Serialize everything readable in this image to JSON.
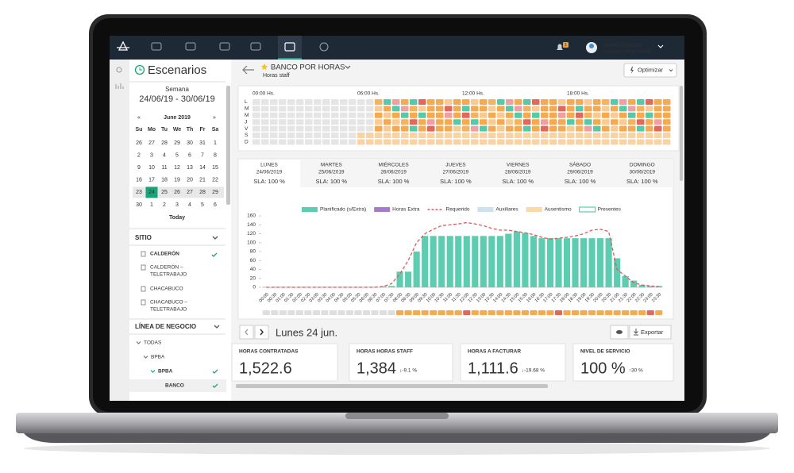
{
  "header": {
    "user_name": "Javier Colombo",
    "user_role": "Supervisor, BACK OFFICE",
    "notifications": "1"
  },
  "sidebar": {
    "title": "Escenarios",
    "week_label": "Semana",
    "week_range": "24/06/19 - 30/06/19",
    "calendar": {
      "prev": "«",
      "month": "June 2019",
      "next": "»",
      "weekdays": [
        "Su",
        "Mo",
        "Tu",
        "We",
        "Th",
        "Fr",
        "Sa"
      ],
      "weeks": [
        [
          26,
          27,
          28,
          29,
          30,
          31,
          1
        ],
        [
          2,
          3,
          4,
          5,
          6,
          7,
          8
        ],
        [
          9,
          10,
          11,
          12,
          13,
          14,
          15
        ],
        [
          16,
          17,
          18,
          19,
          20,
          21,
          22
        ],
        [
          23,
          24,
          25,
          26,
          27,
          28,
          29
        ],
        [
          30,
          1,
          2,
          3,
          4,
          5,
          6
        ]
      ],
      "today": "Today"
    },
    "site_title": "SITIO",
    "sites": [
      [
        "CALDERÓN"
      ],
      [
        "CALDERÓN –",
        "TELETRABAJO"
      ],
      [
        "CHACABUCO"
      ],
      [
        "CHACABUCO –",
        "TELETRABAJO"
      ]
    ],
    "business_title": "LÍNEA DE NEGOCIO",
    "business": [
      "TODAS",
      "BPBA",
      "BPBA",
      "BANCO"
    ]
  },
  "page": {
    "title": "BANCO POR HORAS",
    "subtitle": "Horas staff",
    "optimize": "Optimizar"
  },
  "heatmap": {
    "times": [
      "00:00 Hs.",
      "06:00 Hs.",
      "12:00 Hs.",
      "18:00 Hs."
    ],
    "rows": [
      "L",
      "M",
      "M",
      "J",
      "V",
      "S",
      "D"
    ]
  },
  "days": [
    {
      "name": "LUNES",
      "date": "24/06/2019",
      "sla": "SLA: 100 %"
    },
    {
      "name": "MARTES",
      "date": "25/06/2019",
      "sla": "SLA: 100 %"
    },
    {
      "name": "MIÉRCOLES",
      "date": "26/06/2019",
      "sla": "SLA: 100 %"
    },
    {
      "name": "JUEVES",
      "date": "27/06/2019",
      "sla": "SLA: 100 %"
    },
    {
      "name": "VIERNES",
      "date": "28/06/2019",
      "sla": "SLA: 100 %"
    },
    {
      "name": "SÁBADO",
      "date": "29/06/2019",
      "sla": "SLA: 100 %"
    },
    {
      "name": "DOMINGO",
      "date": "30/06/2019",
      "sla": "SLA: 100 %"
    }
  ],
  "chart": {
    "type": "bar",
    "categories": [
      "00:00",
      "00:30",
      "01:00",
      "01:30",
      "02:00",
      "02:30",
      "03:00",
      "03:30",
      "04:00",
      "04:30",
      "05:00",
      "05:30",
      "06:00",
      "06:30",
      "07:00",
      "07:30",
      "08:00",
      "08:30",
      "09:00",
      "09:30",
      "10:00",
      "10:30",
      "11:00",
      "11:30",
      "12:00",
      "12:30",
      "13:00",
      "13:30",
      "14:00",
      "14:30",
      "15:00",
      "15:30",
      "16:00",
      "16:30",
      "17:00",
      "17:30",
      "18:00",
      "18:30",
      "19:00",
      "19:30",
      "20:00",
      "20:30",
      "21:00",
      "21:30",
      "22:00",
      "22:30",
      "23:00",
      "23:30"
    ],
    "series": [
      {
        "name": "Planificado (s/Extra)",
        "color": "#5ccdb0",
        "values": [
          1,
          1,
          1,
          1,
          1,
          1,
          1,
          1,
          1,
          1,
          1,
          1,
          1,
          1,
          2,
          3,
          35,
          35,
          80,
          115,
          115,
          115,
          115,
          115,
          115,
          115,
          115,
          115,
          115,
          120,
          125,
          122,
          115,
          110,
          110,
          110,
          110,
          110,
          110,
          110,
          110,
          110,
          65,
          25,
          15,
          5,
          3,
          3
        ]
      },
      {
        "name": "Horas Extra",
        "color": "#a67cc6"
      },
      {
        "name": "Requerido",
        "color": "#e05a5a",
        "values": [
          0,
          0,
          0,
          0,
          0,
          0,
          0,
          0,
          0,
          0,
          0,
          0,
          0,
          0,
          2,
          8,
          30,
          60,
          100,
          120,
          130,
          138,
          140,
          142,
          145,
          142,
          138,
          132,
          128,
          128,
          125,
          122,
          118,
          112,
          108,
          110,
          112,
          115,
          120,
          128,
          130,
          125,
          40,
          25,
          10,
          5,
          3,
          2
        ]
      },
      {
        "name": "Auxiliares",
        "color": "#cfe0ef"
      },
      {
        "name": "Ausentismo",
        "color": "#f9d9a8"
      },
      {
        "name": "Presentes",
        "color": "#5ccdb0"
      }
    ],
    "ylim": [
      0,
      160
    ],
    "yticks": [
      0,
      20,
      40,
      60,
      80,
      100,
      120,
      140,
      160
    ]
  },
  "footer": {
    "date": "Lunes 24 jun.",
    "export": "Exportar",
    "kpis": [
      {
        "title": "HORAS CONTRATADAS",
        "value": "1,522.6"
      },
      {
        "title": "HORAS HORAS STAFF",
        "value": "1,384",
        "delta": "↓-9.1 %"
      },
      {
        "title": "HORAS A FACTURAR",
        "value": "1,111.6",
        "delta": "↓-19.68 %"
      },
      {
        "title": "NIVEL DE SERVICIO",
        "value": "100 %",
        "delta": "↑30 %"
      }
    ]
  }
}
